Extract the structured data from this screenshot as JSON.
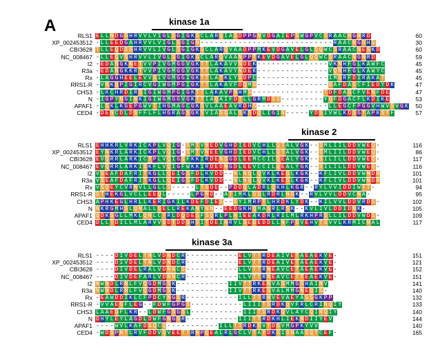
{
  "figure": {
    "panel_letter": "A",
    "legend_colors": {
      "hydrophobic_green": "#0b9a46",
      "acidic_red": "#d8262c",
      "basic_blue": "#1c3fa0",
      "polar_orange": "#e6a146",
      "special_purple": "#6a2a8c",
      "small_gray": "#8a8a8a"
    }
  },
  "blocks": [
    {
      "domain_label": "kinase 1a",
      "rows": [
        {
          "name": "RLS1",
          "seq": "ELLNDGSHRVVLVIGLSGIGKSCLARQIASDPPGNVDGAIEPSWGPVCSRAACNGNRD",
          "end": "60"
        },
        {
          "name": "XP_002453512",
          "seq": "-LLEEDGAHRVVLVIGLSGIGN----------------------------RAACNGSHS",
          "end": "30"
        },
        {
          "name": "CBI3628",
          "seq": "TLLEQDSSHRVVLIVGLSGIGKSCLARQVAADPPMKEVDGAVELGLQQWCSRAACNESKD",
          "end": "60"
        },
        {
          "name": "NC_008467",
          "seq": "-LLEQVSHRVVLIVGLSGIGKSCLARQVAANPPTKEVDGAVELGLQQWCSRAACNGNRD",
          "end": "59"
        },
        {
          "name": "I2",
          "seq": "-EDANGKNETVVPIVGMGGVGKTTLAKAVVNDEK---------------VKNHFGLKAWFC",
          "end": "45"
        },
        {
          "name": "R3a",
          "seq": "-EDANGKKRTVVPIVGMGGVGKTTLAKAVYNDEK---------------VQNHFGLKAWYC",
          "end": "45"
        },
        {
          "name": "Rx",
          "seq": "-LAGGHEELEVVSIVGMGGIGKTTLATKLYSDPC---------------IMSRFDIRAKAT",
          "end": "45"
        },
        {
          "name": "RRS1-R",
          "seq": "-VNKQPIGIRCVGIWGMPGIGKTTLAKAVFDQMS---------------SAFDASCFIEDYDK",
          "end": "47"
        },
        {
          "name": "CHS3",
          "seq": "-LKCHRDIRSIGIWGMPGIGKTTLAKAVPNHMS---------------TDFDASCFVENFDE",
          "end": "47"
        },
        {
          "name": "N",
          "seq": "-IGPYNGINKIGIWGMGGVGKTTIAQAIFDTLLGRMDSS---------YQFDGACFLKDIKE",
          "end": "53"
        },
        {
          "name": "APAF1",
          "seq": "-LSKLKGEPGWVTIHGMAGCGKSVLAAEAVRDHS---------------LLEGCFPGGVHWVSVGK",
          "end": "50"
        },
        {
          "name": "CED4",
          "seq": "-DENCDLDSFFLFLHGRAGSGKSVIASQALSKSDQLIGIN-----YDSIVWLKDSGTAPKSTF",
          "end": "57"
        }
      ]
    },
    {
      "domain_label": "kinase 2",
      "rows": [
        {
          "name": "RLS1",
          "seq": "EHHKRLVRKICKPLVQIG-SMTVNEDVGHDIEDVCHLLQTALVGK--SMLIILDDVWEQ-",
          "end": "116"
        },
        {
          "name": "XP_002453512",
          "seq": "EYNKRLARKICKPLVQIG-SMTVNEEVGHDIEDVCHLLQTALVGK--SMLIILDDVWEQ-",
          "end": "86"
        },
        {
          "name": "CBI3628",
          "seq": "EVQRRLARKICTPLVQIGSFKKIRDENSGDLEEMCCILQEALYGK--SILILLDDVWEQ-",
          "end": "117"
        },
        {
          "name": "NC_008467",
          "seq": "EVQRRLARKISKFLVQIGFWKKIRDEDNGDLEEVCCILQEALYGK--SILILLDDVWEQ-",
          "end": "116"
        },
        {
          "name": "I2",
          "seq": "VSEAFDAFRITKGLLQEIGSFDLKVDD--NLNQLQVKLKESLKGK--KFLIVLDDVWNDN",
          "end": "101"
        },
        {
          "name": "R3a",
          "seq": "VSEAFDAFRITKGLLQEIGSFDLKVDD--NLNQLQVKLKESLKGK--KFLIVLDDVWNDN",
          "end": "101"
        },
        {
          "name": "Rx",
          "seq": "VSQEYCVRNVLLGLLS-----LTSDE--PDDQLADRLQKHLKGR--RYLVVIDDIWTT-",
          "end": "94"
        },
        {
          "name": "RRS1-R",
          "seq": "STHEKGLVCLLEEQL-----LPGND--ATIMKLSSLRDRLNSK--RVLVVLDDVCNA-",
          "end": "95"
        },
        {
          "name": "CHS3",
          "seq": "APHKEGLHRLLKERIGKILKDEFDIES--SYIMRPTLHRDKLYDK--KILVVLDDVRDS-",
          "end": "102"
        },
        {
          "name": "N",
          "seq": "NKRGMHSLQNALLSELLREKANYNN--EEDGKHQMASRLRSK--KVLIVLDDIDNK-",
          "end": "105"
        },
        {
          "name": "APAF1",
          "seq": "QDKSGLLMKLQNLCTRLDQDESFSQRLPLNIEEAKDRLRILMLRKHPRSLLILDDVWDS-",
          "end": "109"
        },
        {
          "name": "CED4",
          "seq": "DLLTDILLMLARVVSDTDDSHSITDEINRVLSESEDDLLNFPSVEHVTSVVLKRMICNAL",
          "end": "117"
        }
      ]
    },
    {
      "domain_label": "kinase 3a",
      "rows": [
        {
          "name": "RLS1",
          "seq": "----DIVDELTNLVDNDCR-----------ELVTTRDEAIVETAEAEKVE-",
          "end": "151"
        },
        {
          "name": "XP_002453512",
          "seq": "----DIVDELTNLVDNDCR-----------ELVTTRDEAIVETAEAEKVE-",
          "end": "121"
        },
        {
          "name": "CBI3628",
          "seq": "----DIVDELRALVDNNCS-----------LLVTTRNEAVCETAEAEKVE-",
          "end": "152"
        },
        {
          "name": "NC_008467",
          "seq": "----DIVDEFARLVDNNCR-----------LLVTTRNEAVCETTEAEKVE-",
          "end": "151"
        },
        {
          "name": "I2",
          "seq": "NWNDLRNLFVQGDMGSK-----------IIVTTRKENVASMMGSHAINV",
          "end": "141"
        },
        {
          "name": "R3a",
          "seq": "NWNDLRNLFVQGDMGSK-----------IIVTTRKESVALMMGNEQIS-",
          "end": "140"
        },
        {
          "name": "Rx",
          "seq": "-EAWDDIKLCFPDCYNGSR-----------ILLTTRNVEVAEYASSGKPP",
          "end": "132"
        },
        {
          "name": "RRS1-R",
          "seq": "-VVAESFLEG--FDWFGPGS-----------LIIITSRDKQVFRLCRINQIY",
          "end": "133"
        },
        {
          "name": "CHS3",
          "seq": "LAAESFLKR--LDWFGSGSL-----------IIITSRDKQVLAYCQINQIY",
          "end": "140"
        },
        {
          "name": "N",
          "seq": "DHYLEYLAGDLDWFGNGSR-----------IIITTRDKHLIEKNDIIYEV",
          "end": "144"
        },
        {
          "name": "APAF1",
          "seq": "----WVLKAFDSQCQ-----------ILLTTRDKSVTDSVMGPKYVV",
          "end": "140"
        },
        {
          "name": "CED4",
          "seq": "-WDSPNTLRVFDDVQVEETTRNPQEALRLGCLVTATDKSISNAASQTCEF-",
          "end": "165"
        }
      ]
    }
  ]
}
